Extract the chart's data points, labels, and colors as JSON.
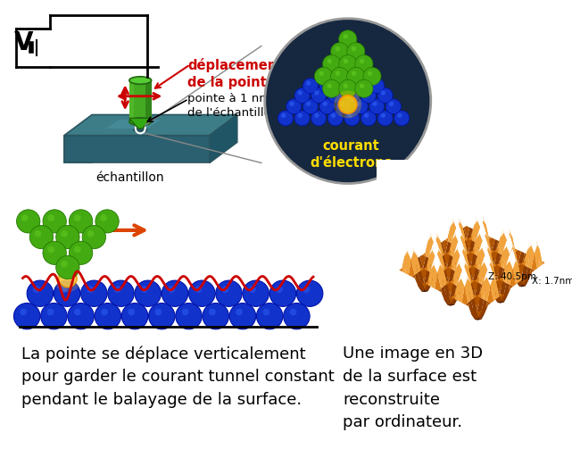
{
  "bg_color": "#ffffff",
  "text_left_bottom": "La pointe se déplace verticalement\npour garder le courant tunnel constant\npendant le balayage de la surface.",
  "text_right_bottom": "Une image en 3D\nde la surface est\nreconstruite\npar ordinateur.",
  "text_deplacement": "déplacement\nde la pointe",
  "text_pointe": "pointe à 1 nm\nde l'échantillon",
  "text_echantillon": "échantillon",
  "text_courant": "courant\nd'électrons",
  "text_V": "V",
  "label_Z": "Z: 40.5pm",
  "label_X": "X: 1.7nm",
  "red_color": "#cc0000",
  "orange_arrow": "#dd4400",
  "yellow_color": "#ffdd00",
  "green_dark": "#227700",
  "green_mid": "#44aa11",
  "green_light": "#66cc22",
  "blue_dark": "#0011aa",
  "blue_mid": "#1133cc",
  "blue_light": "#3366ff",
  "dark_teal": "#2a6060",
  "font_size_main": 13,
  "font_size_label": 10,
  "font_size_V": 20
}
